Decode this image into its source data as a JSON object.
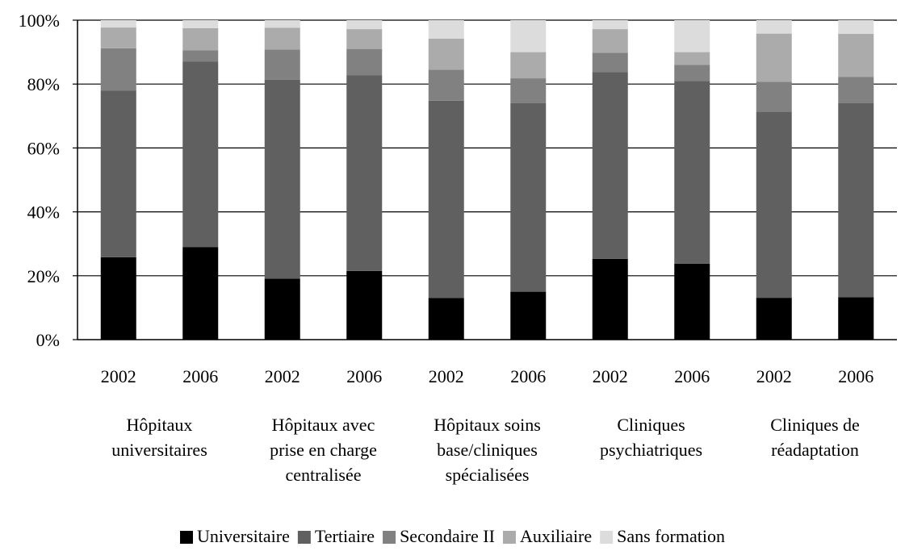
{
  "chart_data": {
    "type": "bar",
    "stacked": true,
    "percent": true,
    "yticks": [
      "0%",
      "20%",
      "40%",
      "60%",
      "80%",
      "100%"
    ],
    "ylim": [
      0,
      100
    ],
    "grid": true,
    "legend_position": "bottom",
    "groups": [
      {
        "label_lines": [
          "Hôpitaux",
          "universitaires"
        ],
        "years": [
          "2002",
          "2006"
        ]
      },
      {
        "label_lines": [
          "Hôpitaux avec",
          "prise en charge",
          "centralisée"
        ],
        "years": [
          "2002",
          "2006"
        ]
      },
      {
        "label_lines": [
          "Hôpitaux soins",
          "base/cliniques",
          "spécialisées"
        ],
        "years": [
          "2002",
          "2006"
        ]
      },
      {
        "label_lines": [
          "Cliniques",
          "psychiatriques"
        ],
        "years": [
          "2002",
          "2006"
        ]
      },
      {
        "label_lines": [
          "Cliniques de",
          "réadaptation"
        ],
        "years": [
          "2002",
          "2006"
        ]
      }
    ],
    "series": [
      {
        "name": "Universitaire",
        "color": "#000000",
        "values": [
          25.8,
          29.0,
          19.1,
          21.5,
          13.0,
          15.0,
          25.3,
          23.8,
          13.1,
          13.3
        ]
      },
      {
        "name": "Tertiaire",
        "color": "#606060",
        "values": [
          52.2,
          58.0,
          62.3,
          61.3,
          61.8,
          59.0,
          58.5,
          57.2,
          58.3,
          60.7
        ]
      },
      {
        "name": "Secondaire II",
        "color": "#818181",
        "values": [
          13.2,
          3.6,
          9.4,
          8.2,
          9.7,
          7.8,
          6.0,
          5.0,
          9.3,
          8.2
        ]
      },
      {
        "name": "Auxiliaire",
        "color": "#ababab",
        "values": [
          6.5,
          6.9,
          6.8,
          6.2,
          9.7,
          8.2,
          7.4,
          4.0,
          15.1,
          13.5
        ]
      },
      {
        "name": "Sans formation",
        "color": "#dcdcdc",
        "values": [
          2.3,
          2.5,
          2.4,
          2.8,
          5.8,
          10.0,
          2.8,
          10.0,
          4.2,
          4.3
        ]
      }
    ]
  }
}
